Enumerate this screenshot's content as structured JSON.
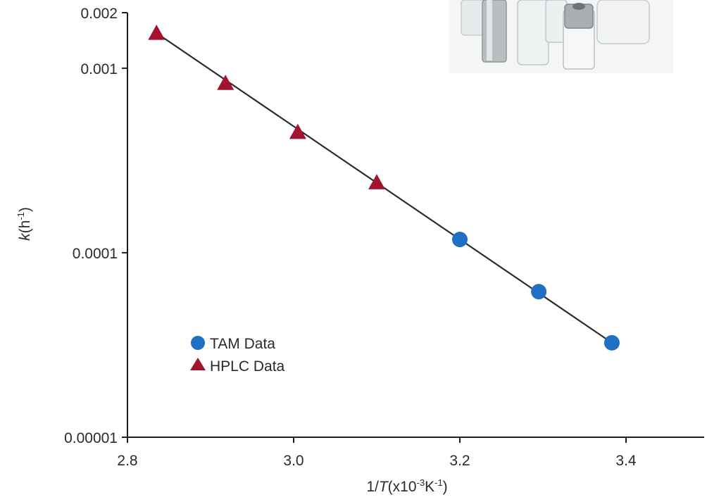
{
  "chart_data": {
    "type": "scatter",
    "title": "",
    "xlabel": {
      "prefix": "1/",
      "var": "T",
      "open": "(x10",
      "exp1": "-3",
      "unit": "K",
      "exp2": "-1",
      "close": ")"
    },
    "ylabel": {
      "var": "k",
      "open": "(h",
      "exp": "-1",
      "close": ")"
    },
    "xlim": [
      2.8,
      3.5
    ],
    "ylim": [
      1e-05,
      0.002
    ],
    "yscale": "log",
    "x_ticks": [
      2.8,
      3.0,
      3.2,
      3.4
    ],
    "x_tick_labels": [
      "2.8",
      "3.0",
      "3.2",
      "3.4"
    ],
    "y_ticks": [
      0.002,
      0.001,
      0.0001,
      1e-05
    ],
    "y_tick_labels": [
      "0.002",
      "0.001",
      "0.0001",
      "0.00001"
    ],
    "grid": false,
    "legend_position": "lower-left",
    "series": [
      {
        "name": "TAM Data",
        "marker": "circle",
        "color": "#1f6fc2",
        "points": [
          {
            "x": 3.2,
            "y": 0.000118
          },
          {
            "x": 3.295,
            "y": 6.15e-05
          },
          {
            "x": 3.383,
            "y": 3.25e-05
          }
        ]
      },
      {
        "name": "HPLC Data",
        "marker": "triangle",
        "color": "#a3122f",
        "points": [
          {
            "x": 2.835,
            "y": 0.00155
          },
          {
            "x": 2.918,
            "y": 0.00083
          },
          {
            "x": 3.005,
            "y": 0.00045
          },
          {
            "x": 3.1,
            "y": 0.00024
          }
        ]
      }
    ],
    "fit_line": {
      "x": [
        2.835,
        3.383
      ],
      "y": [
        0.00155,
        3.25e-05
      ],
      "color": "#2b2b2b"
    }
  },
  "decoration": {
    "photo": "glass and stainless-steel sample vials",
    "icon": "vials-photo"
  }
}
